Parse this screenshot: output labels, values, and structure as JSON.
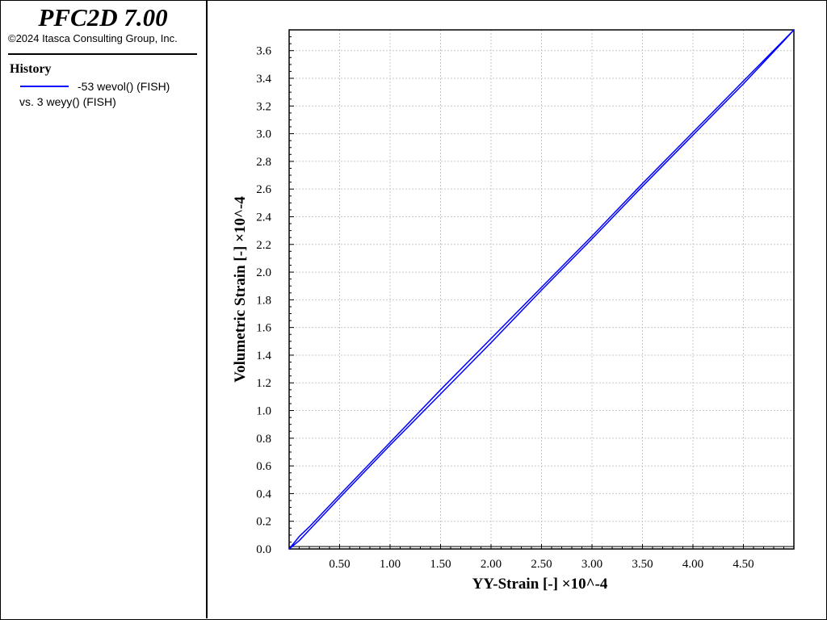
{
  "app": {
    "title": "PFC2D 7.00",
    "copyright": "©2024 Itasca Consulting Group, Inc."
  },
  "legend": {
    "heading": "History",
    "entries": [
      {
        "label": "-53 wevol() (FISH)",
        "color": "#0000ff"
      }
    ],
    "vs_label": "vs. 3 weyy() (FISH)"
  },
  "chart_data": {
    "type": "line",
    "xlabel": "YY-Strain [-] ×10^-4",
    "ylabel": "Volumetric Strain [-] ×10^-4",
    "xlim": [
      0.0,
      5.0
    ],
    "ylim": [
      0.0,
      3.75
    ],
    "x_ticks": [
      0.5,
      1.0,
      1.5,
      2.0,
      2.5,
      3.0,
      3.5,
      4.0,
      4.5
    ],
    "x_tick_labels": [
      "0.50",
      "1.00",
      "1.50",
      "2.00",
      "2.50",
      "3.00",
      "3.50",
      "4.00",
      "4.50"
    ],
    "y_ticks": [
      0.0,
      0.2,
      0.4,
      0.6,
      0.8,
      1.0,
      1.2,
      1.4,
      1.6,
      1.8,
      2.0,
      2.2,
      2.4,
      2.6,
      2.8,
      3.0,
      3.2,
      3.4,
      3.6
    ],
    "y_tick_labels": [
      "0.0",
      "0.2",
      "0.4",
      "0.6",
      "0.8",
      "1.0",
      "1.2",
      "1.4",
      "1.6",
      "1.8",
      "2.0",
      "2.2",
      "2.4",
      "2.6",
      "2.8",
      "3.0",
      "3.2",
      "3.4",
      "3.6"
    ],
    "grid": true,
    "series": [
      {
        "name": "-53 wevol() (FISH)",
        "color": "#0000ff",
        "x": [
          0.0,
          0.1,
          0.2,
          0.5,
          1.0,
          1.5,
          2.0,
          2.5,
          3.0,
          3.5,
          4.0,
          4.5,
          5.0,
          4.9,
          4.5,
          4.0,
          3.5,
          3.0,
          2.5,
          2.0,
          1.5,
          1.0,
          0.5,
          0.1,
          0.0
        ],
        "y": [
          0.0,
          0.09,
          0.16,
          0.39,
          0.77,
          1.15,
          1.52,
          1.89,
          2.26,
          2.64,
          3.01,
          3.38,
          3.75,
          3.67,
          3.36,
          2.99,
          2.62,
          2.24,
          1.87,
          1.49,
          1.12,
          0.75,
          0.37,
          0.06,
          0.0
        ]
      }
    ]
  }
}
